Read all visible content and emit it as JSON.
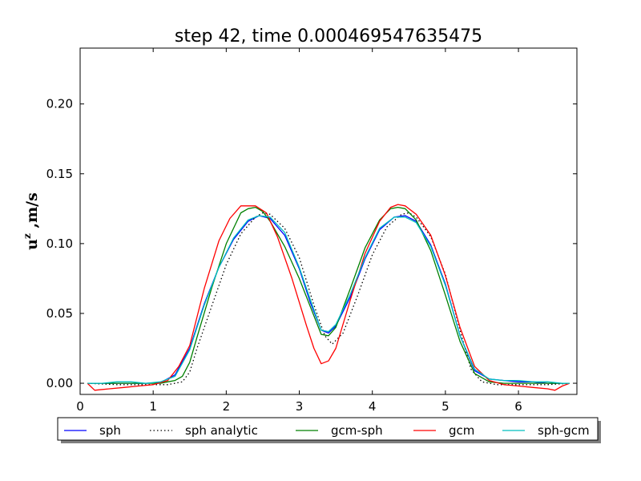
{
  "chart_data": {
    "type": "line",
    "title": "step 42, time 0.000469547635475",
    "ylabel_base": "u",
    "ylabel_sup": "z",
    "ylabel_rest": " ,m/s",
    "xlim": [
      0,
      6.8
    ],
    "ylim": [
      -0.008,
      0.24
    ],
    "xticks": [
      0,
      1,
      2,
      3,
      4,
      5,
      6
    ],
    "xtick_labels": [
      "0",
      "1",
      "2",
      "3",
      "4",
      "5",
      "6"
    ],
    "yticks": [
      0.0,
      0.05,
      0.1,
      0.15,
      0.2
    ],
    "ytick_labels": [
      "0.00",
      "0.05",
      "0.10",
      "0.15",
      "0.20"
    ],
    "grid": false,
    "legend_position": "below",
    "series": [
      {
        "name": "sph",
        "color": "#0000ff",
        "dash": "solid",
        "x": [
          0.1,
          0.3,
          0.5,
          0.7,
          0.9,
          1.1,
          1.3,
          1.5,
          1.7,
          1.9,
          2.1,
          2.3,
          2.45,
          2.6,
          2.8,
          3.0,
          3.15,
          3.3,
          3.4,
          3.5,
          3.7,
          3.9,
          4.1,
          4.3,
          4.45,
          4.6,
          4.8,
          5.0,
          5.2,
          5.4,
          5.6,
          5.8,
          6.0,
          6.2,
          6.4,
          6.6,
          6.7
        ],
        "y": [
          0.0,
          0.0,
          0.0,
          0.0,
          0.0,
          0.0005,
          0.006,
          0.025,
          0.057,
          0.083,
          0.103,
          0.116,
          0.12,
          0.118,
          0.106,
          0.082,
          0.058,
          0.038,
          0.036,
          0.041,
          0.062,
          0.089,
          0.11,
          0.119,
          0.12,
          0.116,
          0.099,
          0.071,
          0.034,
          0.009,
          0.003,
          0.002,
          0.001,
          0.001,
          0.0,
          0.0,
          0.0
        ]
      },
      {
        "name": "sph analytic",
        "color": "#000000",
        "dash": "dotted",
        "x": [
          0.1,
          0.5,
          0.9,
          1.2,
          1.4,
          1.5,
          1.6,
          1.8,
          2.0,
          2.2,
          2.4,
          2.5,
          2.6,
          2.8,
          3.0,
          3.2,
          3.35,
          3.45,
          3.6,
          3.8,
          4.0,
          4.2,
          4.4,
          4.5,
          4.6,
          4.8,
          5.0,
          5.2,
          5.35,
          5.5,
          5.7,
          6.0,
          6.4,
          6.7
        ],
        "y": [
          0.0,
          -0.001,
          -0.001,
          -0.001,
          0.001,
          0.008,
          0.025,
          0.055,
          0.085,
          0.107,
          0.119,
          0.122,
          0.121,
          0.111,
          0.09,
          0.056,
          0.034,
          0.028,
          0.036,
          0.063,
          0.092,
          0.112,
          0.121,
          0.122,
          0.119,
          0.105,
          0.078,
          0.038,
          0.01,
          0.001,
          -0.001,
          -0.001,
          -0.001,
          0.0
        ]
      },
      {
        "name": "gcm-sph",
        "color": "#008000",
        "dash": "solid",
        "x": [
          0.1,
          0.5,
          0.9,
          1.1,
          1.2,
          1.3,
          1.4,
          1.5,
          1.6,
          1.8,
          2.0,
          2.2,
          2.3,
          2.4,
          2.5,
          2.6,
          2.8,
          3.0,
          3.15,
          3.3,
          3.4,
          3.5,
          3.7,
          3.9,
          4.1,
          4.25,
          4.35,
          4.45,
          4.6,
          4.8,
          5.0,
          5.2,
          5.4,
          5.6,
          5.8,
          6.0,
          6.3,
          6.6,
          6.7
        ],
        "y": [
          0.0,
          0.0,
          0.0,
          0.0,
          0.001,
          0.002,
          0.005,
          0.015,
          0.033,
          0.068,
          0.1,
          0.122,
          0.125,
          0.126,
          0.123,
          0.116,
          0.098,
          0.075,
          0.055,
          0.035,
          0.034,
          0.04,
          0.068,
          0.097,
          0.117,
          0.125,
          0.126,
          0.125,
          0.117,
          0.095,
          0.063,
          0.03,
          0.007,
          0.001,
          0.0,
          0.0,
          0.0,
          0.0,
          0.0
        ]
      },
      {
        "name": "gcm",
        "color": "#ff0000",
        "dash": "solid",
        "x": [
          0.1,
          0.2,
          0.4,
          0.6,
          0.8,
          1.0,
          1.2,
          1.35,
          1.5,
          1.7,
          1.9,
          2.05,
          2.2,
          2.4,
          2.55,
          2.7,
          2.9,
          3.1,
          3.2,
          3.3,
          3.4,
          3.5,
          3.7,
          3.9,
          4.1,
          4.25,
          4.35,
          4.45,
          4.6,
          4.8,
          5.0,
          5.2,
          5.4,
          5.6,
          5.8,
          6.0,
          6.2,
          6.4,
          6.5,
          6.6,
          6.7
        ],
        "y": [
          0.0,
          -0.005,
          -0.004,
          -0.003,
          -0.002,
          -0.001,
          0.002,
          0.012,
          0.027,
          0.068,
          0.102,
          0.118,
          0.127,
          0.127,
          0.122,
          0.105,
          0.075,
          0.041,
          0.025,
          0.014,
          0.016,
          0.025,
          0.06,
          0.093,
          0.116,
          0.126,
          0.128,
          0.127,
          0.121,
          0.106,
          0.077,
          0.04,
          0.012,
          0.002,
          -0.001,
          -0.002,
          -0.003,
          -0.004,
          -0.005,
          -0.002,
          0.0
        ]
      },
      {
        "name": "sph-gcm",
        "color": "#00bfbf",
        "dash": "solid",
        "x": [
          0.1,
          0.3,
          0.5,
          0.7,
          0.9,
          1.1,
          1.3,
          1.5,
          1.7,
          1.9,
          2.1,
          2.3,
          2.45,
          2.6,
          2.8,
          3.0,
          3.15,
          3.3,
          3.4,
          3.5,
          3.7,
          3.9,
          4.1,
          4.3,
          4.45,
          4.6,
          4.8,
          5.0,
          5.2,
          5.4,
          5.6,
          5.8,
          6.0,
          6.2,
          6.4,
          6.6,
          6.7
        ],
        "y": [
          0.0,
          0.0,
          0.001,
          0.001,
          0.0,
          0.001,
          0.005,
          0.024,
          0.056,
          0.083,
          0.104,
          0.117,
          0.12,
          0.119,
          0.108,
          0.083,
          0.06,
          0.038,
          0.037,
          0.042,
          0.064,
          0.09,
          0.111,
          0.119,
          0.119,
          0.115,
          0.098,
          0.07,
          0.034,
          0.01,
          0.003,
          0.002,
          0.002,
          0.001,
          0.001,
          0.0,
          0.0
        ]
      }
    ]
  }
}
